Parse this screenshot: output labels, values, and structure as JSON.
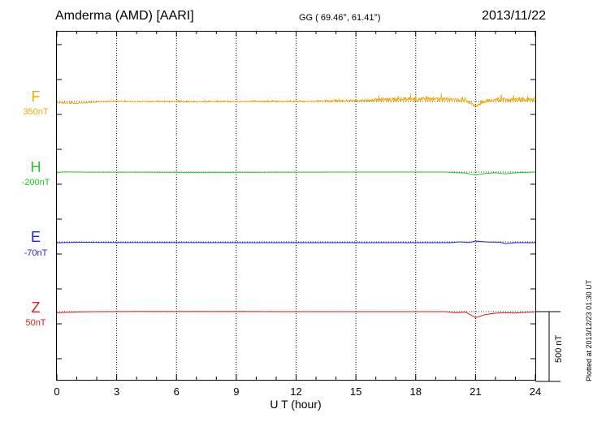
{
  "header": {
    "station": "Amderma (AMD)  [AARI]",
    "coords": "GG ( 69.46°,  61.41°)",
    "date": "2013/11/22"
  },
  "plotted_note": "Plotted at 2013/12/23 01:30 UT",
  "scale_bar": {
    "label": "500 nT",
    "value_nT": 500
  },
  "chart_data": {
    "type": "line",
    "xlabel": "U T (hour)",
    "xlim": [
      0,
      24
    ],
    "xticks": [
      0,
      3,
      6,
      9,
      12,
      15,
      18,
      21,
      24
    ],
    "grid": "vertical dotted every 3 h",
    "series": [
      {
        "name": "F",
        "offset_label": "350nT",
        "color": "#f5a800",
        "x": [
          0,
          0.5,
          1,
          2,
          3,
          4,
          5,
          6,
          7,
          8,
          9,
          10,
          11,
          12,
          13,
          14,
          15,
          16,
          17,
          18,
          19,
          20,
          20.5,
          21,
          21.2,
          21.5,
          22,
          23,
          24
        ],
        "values": [
          345,
          345,
          342,
          352,
          357,
          355,
          355,
          354,
          354,
          354,
          354,
          355,
          355,
          355,
          356,
          358,
          360,
          366,
          370,
          372,
          372,
          368,
          364,
          322,
          332,
          360,
          368,
          368,
          368
        ],
        "noise_nT": [
          10,
          10,
          8,
          8,
          8,
          8,
          9,
          9,
          9,
          9,
          9,
          9,
          10,
          10,
          12,
          14,
          16,
          24,
          30,
          34,
          34,
          30,
          26,
          18,
          22,
          28,
          30,
          30,
          30
        ]
      },
      {
        "name": "H",
        "offset_label": "-200nT",
        "color": "#22cc22",
        "x": [
          0,
          0.3,
          1,
          2,
          4,
          6,
          9,
          12,
          15,
          18,
          19.5,
          20,
          20.5,
          21,
          21.5,
          22,
          22.5,
          23,
          24
        ],
        "values": [
          -202,
          -196,
          -197,
          -198,
          -198,
          -199,
          -199,
          -198,
          -197,
          -197,
          -197,
          -202,
          -204,
          -219,
          -207,
          -202,
          -210,
          -202,
          -197
        ],
        "noise_nT": 0.7
      },
      {
        "name": "E",
        "offset_label": "-70nT",
        "color": "#1f1fdd",
        "x": [
          0,
          1,
          3,
          6,
          9,
          12,
          15,
          18,
          19.7,
          20.2,
          20.7,
          21,
          21.3,
          21.7,
          22.2,
          22.5,
          23,
          24
        ],
        "values": [
          -70,
          -66,
          -68,
          -68,
          -69,
          -69,
          -69,
          -69,
          -69,
          -63,
          -68,
          -57,
          -61,
          -65,
          -65,
          -76,
          -69,
          -69
        ],
        "noise_nT": 0.7
      },
      {
        "name": "Z",
        "offset_label": "50nT",
        "color": "#e51919",
        "x": [
          0,
          0.3,
          1,
          2,
          4,
          6,
          9,
          12,
          15,
          18,
          19.5,
          20,
          20.5,
          21,
          21.5,
          22,
          22.5,
          23,
          24
        ],
        "values": [
          46,
          50,
          54,
          56,
          57,
          57,
          57,
          56,
          56,
          56,
          56,
          48,
          53,
          13,
          35,
          45,
          48,
          46,
          55
        ],
        "noise_nT": 0.7
      }
    ]
  }
}
